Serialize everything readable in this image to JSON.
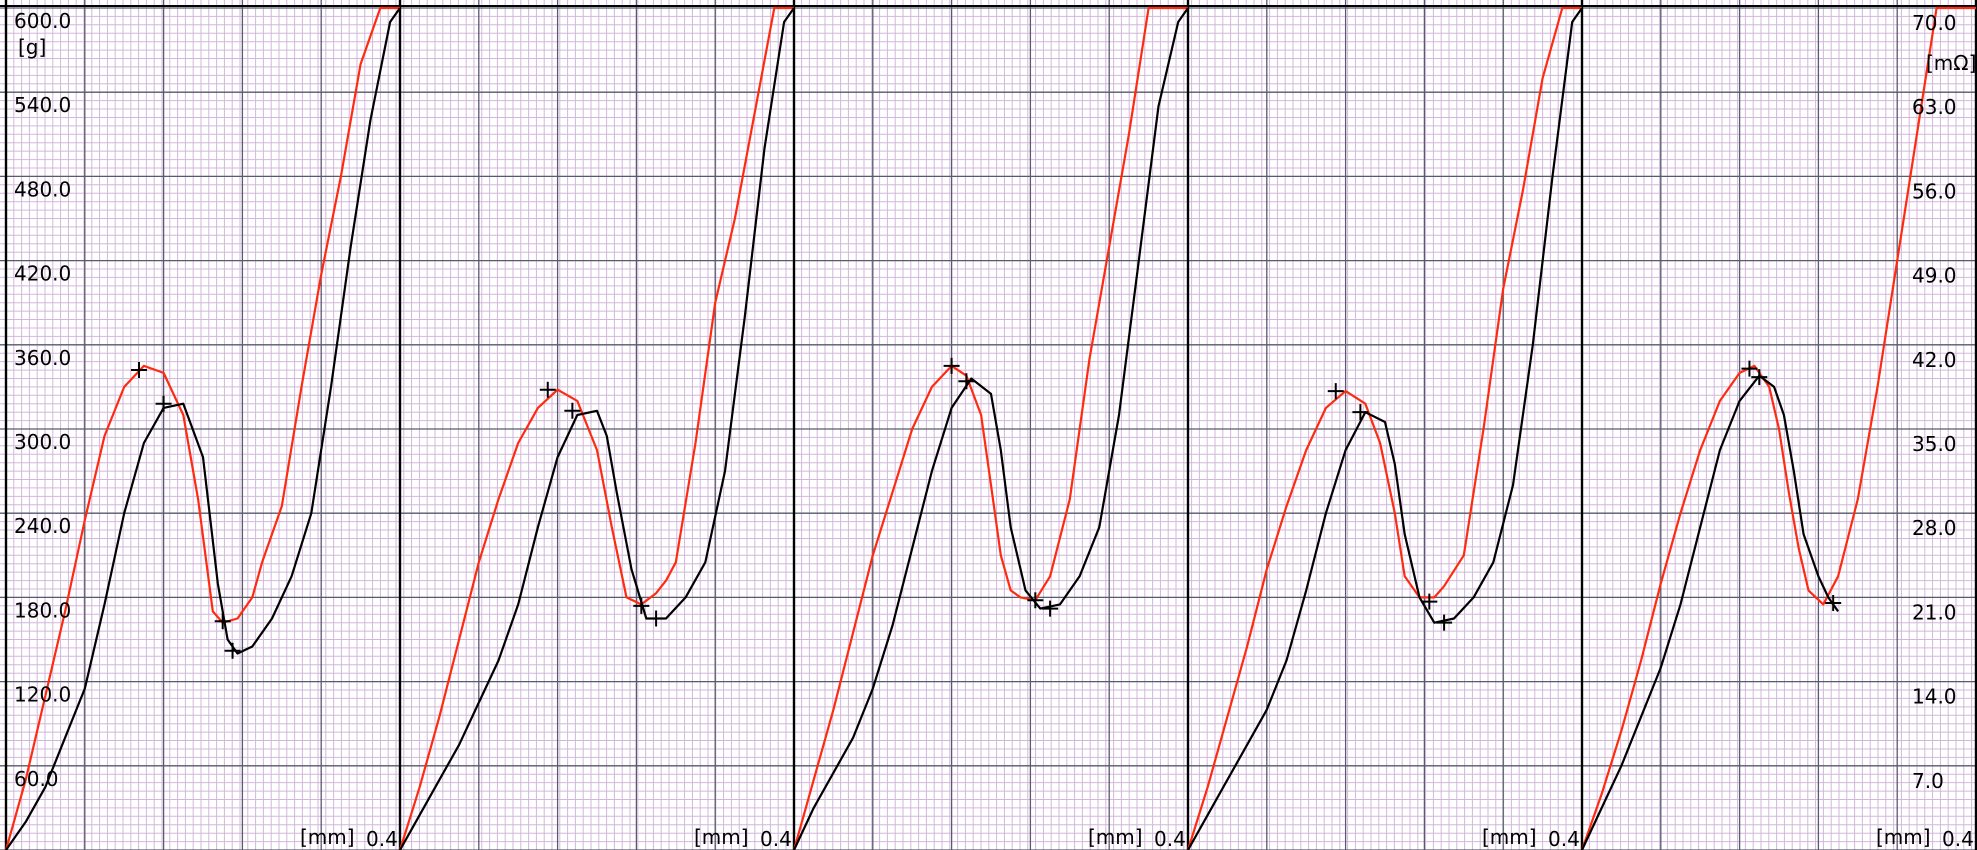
{
  "chart_data": {
    "type": "line",
    "panel_count": 5,
    "y_left": {
      "unit": "[g]",
      "ylim": [
        0,
        600
      ],
      "tick_labels": [
        "60.0",
        "120.0",
        "180.0",
        "240.0",
        "300.0",
        "360.0",
        "420.0",
        "480.0",
        "540.0",
        "600.0"
      ]
    },
    "y_right": {
      "unit": "[mΩ]",
      "ylim": [
        0,
        70
      ],
      "tick_labels": [
        "7.0",
        "14.0",
        "21.0",
        "28.0",
        "35.0",
        "42.0",
        "49.0",
        "56.0",
        "63.0",
        "70.0"
      ]
    },
    "x_axis": {
      "unit": "[mm]",
      "end_label": "0.4",
      "xlim_per_panel": [
        0,
        0.4
      ]
    },
    "grid": true,
    "colors": {
      "background": "#ffffff",
      "minor_grid": "#d2b7dc",
      "major_grid": "#5a5a6e",
      "panel_divider": "#000000",
      "red": "#ff2a10",
      "black": "#000000"
    },
    "series": [
      {
        "color": "red",
        "panels": [
          {
            "x": [
              0,
              0.02,
              0.04,
              0.06,
              0.08,
              0.1,
              0.12,
              0.14,
              0.16,
              0.18,
              0.195,
              0.21,
              0.22,
              0.235,
              0.25,
              0.26,
              0.28,
              0.3,
              0.32,
              0.34,
              0.36,
              0.38,
              0.4
            ],
            "y": [
              0,
              50,
              110,
              170,
              235,
              295,
              330,
              345,
              340,
              310,
              250,
              170,
              162,
              165,
              180,
              205,
              245,
              330,
              410,
              480,
              560,
              600,
              600
            ]
          },
          {
            "x": [
              0,
              0.02,
              0.04,
              0.06,
              0.08,
              0.1,
              0.12,
              0.14,
              0.16,
              0.18,
              0.2,
              0.215,
              0.23,
              0.245,
              0.26,
              0.27,
              0.28,
              0.3,
              0.32,
              0.34,
              0.36,
              0.38,
              0.4
            ],
            "y": [
              0,
              45,
              95,
              150,
              205,
              250,
              290,
              315,
              328,
              320,
              285,
              230,
              180,
              175,
              183,
              192,
              205,
              290,
              390,
              450,
              525,
              600,
              600
            ]
          },
          {
            "x": [
              0,
              0.02,
              0.04,
              0.06,
              0.08,
              0.1,
              0.12,
              0.14,
              0.16,
              0.175,
              0.19,
              0.2,
              0.21,
              0.22,
              0.23,
              0.245,
              0.26,
              0.28,
              0.3,
              0.32,
              0.34,
              0.36,
              0.38,
              0.4
            ],
            "y": [
              0,
              50,
              100,
              155,
              210,
              255,
              300,
              330,
              345,
              338,
              310,
              260,
              210,
              185,
              180,
              178,
              195,
              250,
              350,
              430,
              510,
              600,
              600,
              600
            ]
          },
          {
            "x": [
              0,
              0.02,
              0.04,
              0.06,
              0.08,
              0.1,
              0.12,
              0.14,
              0.16,
              0.18,
              0.195,
              0.21,
              0.22,
              0.235,
              0.25,
              0.26,
              0.28,
              0.3,
              0.32,
              0.34,
              0.36,
              0.38,
              0.4
            ],
            "y": [
              0,
              45,
              95,
              145,
              200,
              245,
              285,
              315,
              327,
              318,
              290,
              240,
              195,
              180,
              180,
              188,
              210,
              300,
              400,
              470,
              550,
              600,
              600
            ]
          },
          {
            "x": [
              0,
              0.02,
              0.04,
              0.06,
              0.08,
              0.1,
              0.12,
              0.14,
              0.16,
              0.175,
              0.19,
              0.2,
              0.21,
              0.22,
              0.23,
              0.245,
              0.26,
              0.28,
              0.3,
              0.32,
              0.34,
              0.36,
              0.38,
              0.4
            ],
            "y": [
              0,
              40,
              85,
              135,
              190,
              240,
              285,
              320,
              340,
              345,
              330,
              300,
              255,
              215,
              185,
              175,
              195,
              250,
              330,
              420,
              510,
              600,
              600,
              600
            ]
          }
        ]
      },
      {
        "color": "black",
        "panels": [
          {
            "x": [
              0,
              0.02,
              0.04,
              0.06,
              0.08,
              0.1,
              0.12,
              0.14,
              0.16,
              0.18,
              0.2,
              0.215,
              0.225,
              0.235,
              0.25,
              0.27,
              0.29,
              0.31,
              0.33,
              0.35,
              0.37,
              0.39,
              0.4
            ],
            "y": [
              0,
              20,
              45,
              80,
              115,
              175,
              240,
              290,
              315,
              318,
              280,
              190,
              150,
              140,
              145,
              165,
              195,
              240,
              330,
              430,
              520,
              590,
              600
            ]
          },
          {
            "x": [
              0,
              0.02,
              0.04,
              0.06,
              0.08,
              0.1,
              0.12,
              0.14,
              0.16,
              0.18,
              0.2,
              0.21,
              0.22,
              0.235,
              0.25,
              0.27,
              0.29,
              0.31,
              0.33,
              0.35,
              0.37,
              0.39,
              0.4
            ],
            "y": [
              0,
              25,
              50,
              75,
              105,
              135,
              175,
              230,
              280,
              310,
              313,
              295,
              255,
              200,
              165,
              165,
              180,
              205,
              270,
              380,
              500,
              590,
              600
            ]
          },
          {
            "x": [
              0,
              0.02,
              0.04,
              0.06,
              0.08,
              0.1,
              0.12,
              0.14,
              0.16,
              0.18,
              0.2,
              0.21,
              0.22,
              0.235,
              0.25,
              0.27,
              0.29,
              0.31,
              0.33,
              0.35,
              0.37,
              0.39,
              0.4
            ],
            "y": [
              0,
              30,
              55,
              80,
              115,
              160,
              215,
              270,
              315,
              336,
              325,
              285,
              230,
              185,
              172,
              175,
              195,
              230,
              310,
              420,
              530,
              590,
              600
            ]
          },
          {
            "x": [
              0,
              0.02,
              0.04,
              0.06,
              0.08,
              0.1,
              0.12,
              0.14,
              0.16,
              0.18,
              0.2,
              0.21,
              0.22,
              0.235,
              0.25,
              0.27,
              0.29,
              0.31,
              0.33,
              0.35,
              0.37,
              0.39,
              0.4
            ],
            "y": [
              0,
              25,
              50,
              75,
              100,
              135,
              185,
              240,
              285,
              312,
              305,
              275,
              225,
              180,
              162,
              165,
              180,
              205,
              260,
              360,
              480,
              590,
              600
            ]
          },
          {
            "x": [
              0,
              0.02,
              0.04,
              0.06,
              0.08,
              0.1,
              0.12,
              0.14,
              0.16,
              0.18,
              0.195,
              0.205,
              0.215,
              0.225,
              0.24,
              0.25,
              0.26
            ],
            "y": [
              0,
              30,
              60,
              95,
              130,
              175,
              230,
              285,
              320,
              338,
              330,
              310,
              270,
              225,
              195,
              180,
              170
            ]
          }
        ]
      }
    ],
    "markers": [
      {
        "series": "red",
        "panel": 0,
        "x": 0.135,
        "y": 342
      },
      {
        "series": "red",
        "panel": 0,
        "x": 0.22,
        "y": 163
      },
      {
        "series": "black",
        "panel": 0,
        "x": 0.16,
        "y": 318
      },
      {
        "series": "black",
        "panel": 0,
        "x": 0.23,
        "y": 142
      },
      {
        "series": "red",
        "panel": 1,
        "x": 0.15,
        "y": 328
      },
      {
        "series": "red",
        "panel": 1,
        "x": 0.245,
        "y": 174
      },
      {
        "series": "black",
        "panel": 1,
        "x": 0.175,
        "y": 313
      },
      {
        "series": "black",
        "panel": 1,
        "x": 0.26,
        "y": 165
      },
      {
        "series": "red",
        "panel": 2,
        "x": 0.16,
        "y": 345
      },
      {
        "series": "red",
        "panel": 2,
        "x": 0.245,
        "y": 178
      },
      {
        "series": "black",
        "panel": 2,
        "x": 0.175,
        "y": 334
      },
      {
        "series": "black",
        "panel": 2,
        "x": 0.26,
        "y": 172
      },
      {
        "series": "red",
        "panel": 3,
        "x": 0.15,
        "y": 327
      },
      {
        "series": "red",
        "panel": 3,
        "x": 0.245,
        "y": 177
      },
      {
        "series": "black",
        "panel": 3,
        "x": 0.175,
        "y": 312
      },
      {
        "series": "black",
        "panel": 3,
        "x": 0.26,
        "y": 162
      },
      {
        "series": "red",
        "panel": 4,
        "x": 0.17,
        "y": 343
      },
      {
        "series": "black",
        "panel": 4,
        "x": 0.18,
        "y": 337
      },
      {
        "series": "red",
        "panel": 4,
        "x": 0.255,
        "y": 176
      }
    ]
  }
}
